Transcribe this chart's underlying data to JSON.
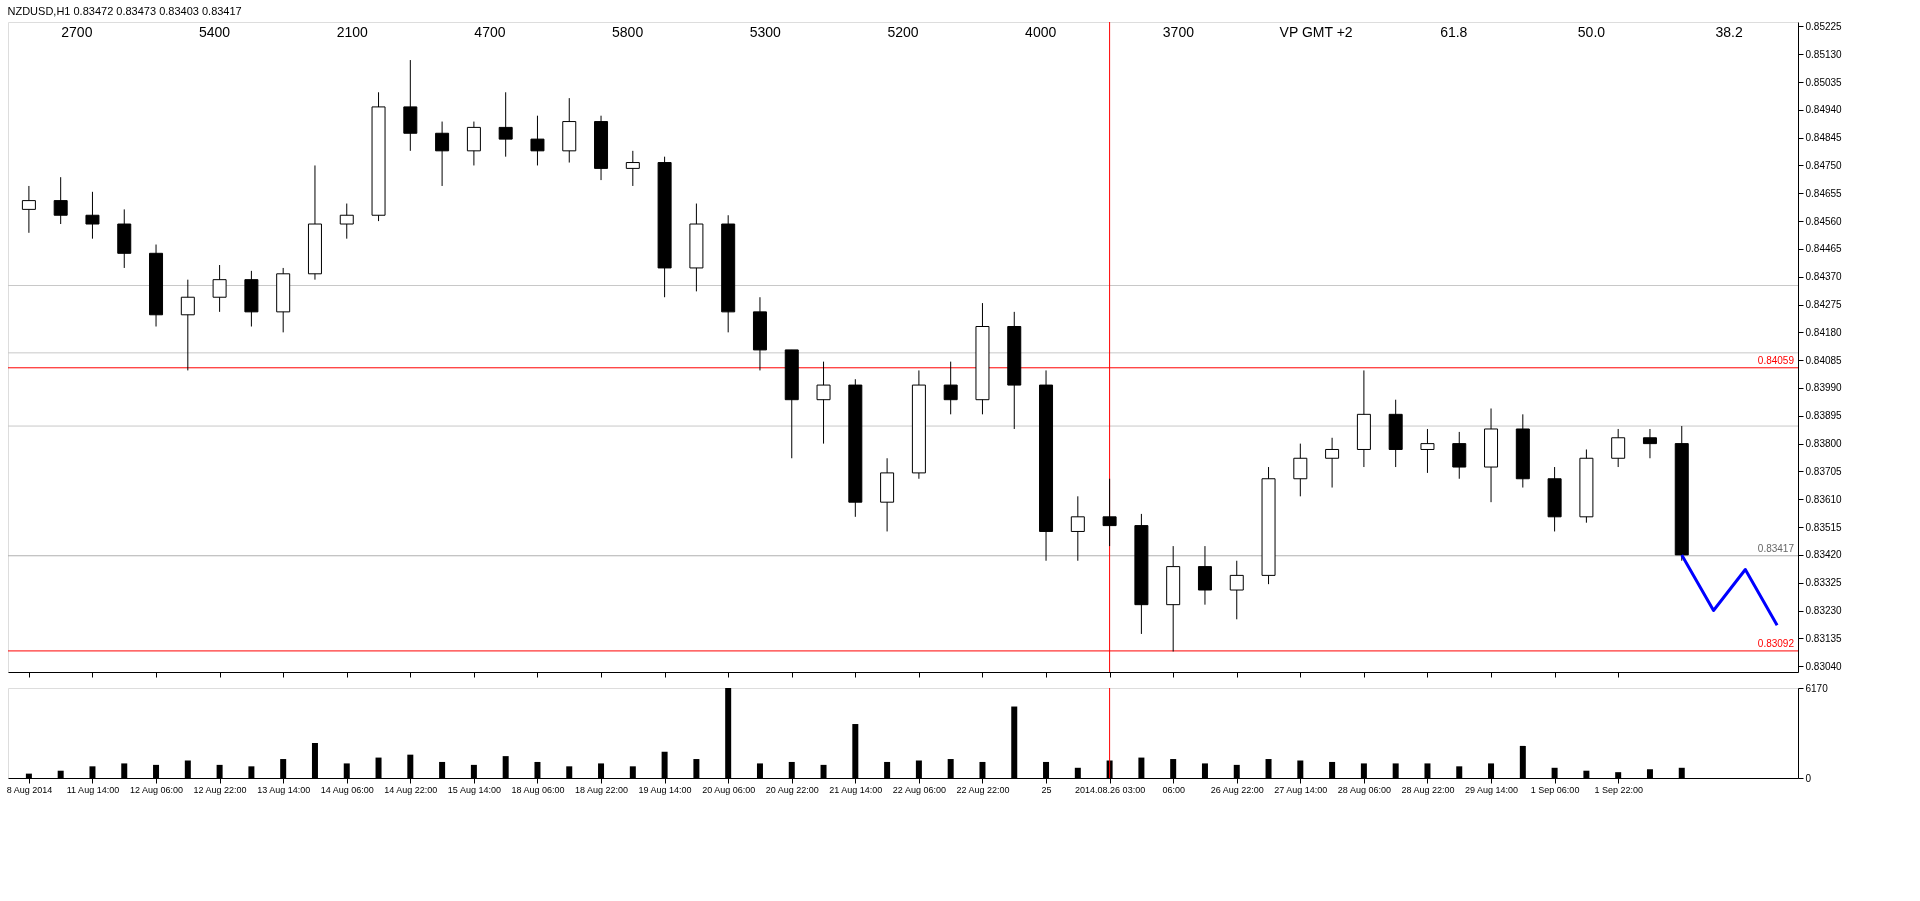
{
  "chart_data": [
    {
      "type": "candlestick",
      "title": "NZDUSD,H1 0.83472 0.83473 0.83403 0.83417",
      "categories": [
        "8 Aug 2014",
        null,
        "11 Aug 14:00",
        null,
        "12 Aug 06:00",
        null,
        "12 Aug 22:00",
        null,
        "13 Aug 14:00",
        null,
        "14 Aug 06:00",
        null,
        "14 Aug 22:00",
        null,
        "15 Aug 14:00",
        null,
        "18 Aug 06:00",
        null,
        "18 Aug 22:00",
        null,
        "19 Aug 14:00",
        null,
        "20 Aug 06:00",
        null,
        "20 Aug 22:00",
        null,
        "21 Aug 14:00",
        null,
        "22 Aug 06:00",
        null,
        "22 Aug 22:00",
        null,
        "25",
        null,
        "2014.08.26 03:00",
        null,
        "06:00",
        null,
        "26 Aug 22:00",
        null,
        "27 Aug 14:00",
        null,
        "28 Aug 06:00",
        null,
        "28 Aug 22:00",
        null,
        "29 Aug 14:00",
        null,
        "1 Sep 06:00",
        null,
        "1 Sep 22:00",
        null,
        null,
        null,
        null,
        null
      ],
      "ohlc": [
        [
          0.846,
          0.8468,
          0.8452,
          0.8463
        ],
        [
          0.8463,
          0.8471,
          0.8455,
          0.8458
        ],
        [
          0.8458,
          0.8466,
          0.845,
          0.8455
        ],
        [
          0.8455,
          0.846,
          0.844,
          0.8445
        ],
        [
          0.8445,
          0.8448,
          0.842,
          0.8424
        ],
        [
          0.8424,
          0.8436,
          0.8405,
          0.843
        ],
        [
          0.843,
          0.8441,
          0.8425,
          0.8436
        ],
        [
          0.8436,
          0.8439,
          0.842,
          0.8425
        ],
        [
          0.8425,
          0.844,
          0.8418,
          0.8438
        ],
        [
          0.8438,
          0.8475,
          0.8436,
          0.8455
        ],
        [
          0.8455,
          0.8462,
          0.845,
          0.8458
        ],
        [
          0.8458,
          0.85,
          0.8456,
          0.8495
        ],
        [
          0.8495,
          0.8511,
          0.848,
          0.8486
        ],
        [
          0.8486,
          0.849,
          0.8468,
          0.848
        ],
        [
          0.848,
          0.849,
          0.8475,
          0.8488
        ],
        [
          0.8488,
          0.85,
          0.8478,
          0.8484
        ],
        [
          0.8484,
          0.8492,
          0.8475,
          0.848
        ],
        [
          0.848,
          0.8498,
          0.8476,
          0.849
        ],
        [
          0.849,
          0.8492,
          0.847,
          0.8474
        ],
        [
          0.8474,
          0.848,
          0.8468,
          0.8476
        ],
        [
          0.8476,
          0.8478,
          0.843,
          0.844
        ],
        [
          0.844,
          0.8462,
          0.8432,
          0.8455
        ],
        [
          0.8455,
          0.8458,
          0.8418,
          0.8425
        ],
        [
          0.8425,
          0.843,
          0.8405,
          0.8412
        ],
        [
          0.8412,
          0.8412,
          0.8375,
          0.8395
        ],
        [
          0.8395,
          0.8408,
          0.838,
          0.84
        ],
        [
          0.84,
          0.8402,
          0.8355,
          0.836
        ],
        [
          0.836,
          0.8375,
          0.835,
          0.837
        ],
        [
          0.837,
          0.8405,
          0.8368,
          0.84
        ],
        [
          0.84,
          0.8408,
          0.839,
          0.8395
        ],
        [
          0.8395,
          0.8428,
          0.839,
          0.842
        ],
        [
          0.842,
          0.8425,
          0.8385,
          0.84
        ],
        [
          0.84,
          0.8405,
          0.834,
          0.835
        ],
        [
          0.835,
          0.8362,
          0.834,
          0.8355
        ],
        [
          0.8355,
          0.8368,
          0.8345,
          0.8352
        ],
        [
          0.8352,
          0.8356,
          0.8315,
          0.8325
        ],
        [
          0.8325,
          0.8345,
          0.8309,
          0.8338
        ],
        [
          0.8338,
          0.8345,
          0.8325,
          0.833
        ],
        [
          0.833,
          0.834,
          0.832,
          0.8335
        ],
        [
          0.8335,
          0.8372,
          0.8332,
          0.8368
        ],
        [
          0.8368,
          0.838,
          0.8362,
          0.8375
        ],
        [
          0.8375,
          0.8382,
          0.8365,
          0.8378
        ],
        [
          0.8378,
          0.8405,
          0.8372,
          0.839
        ],
        [
          0.839,
          0.8395,
          0.8372,
          0.8378
        ],
        [
          0.8378,
          0.8385,
          0.837,
          0.838
        ],
        [
          0.838,
          0.8384,
          0.8368,
          0.8372
        ],
        [
          0.8372,
          0.8392,
          0.836,
          0.8385
        ],
        [
          0.8385,
          0.839,
          0.8365,
          0.8368
        ],
        [
          0.8368,
          0.8372,
          0.835,
          0.8355
        ],
        [
          0.8355,
          0.8378,
          0.8353,
          0.8375
        ],
        [
          0.8375,
          0.8385,
          0.8372,
          0.8382
        ],
        [
          0.8382,
          0.8385,
          0.8375,
          0.838
        ],
        [
          0.838,
          0.8386,
          0.834,
          0.8342
        ],
        null,
        null,
        null
      ],
      "series": [
        {
          "type": "line",
          "values": [
            null,
            null,
            null,
            null,
            null,
            null,
            null,
            null,
            null,
            null,
            null,
            null,
            null,
            null,
            null,
            null,
            null,
            null,
            null,
            null,
            null,
            null,
            null,
            null,
            null,
            null,
            null,
            null,
            null,
            null,
            null,
            null,
            null,
            null,
            null,
            null,
            null,
            null,
            null,
            null,
            null,
            null,
            null,
            null,
            null,
            null,
            null,
            null,
            null,
            null,
            null,
            null,
            0.8342,
            0.8323,
            0.8337,
            0.8318
          ],
          "color": "#0000ff"
        }
      ],
      "ylim": [
        0.8302,
        0.8524
      ],
      "yticks": [
        0.85225,
        {
          "value": 0.8513,
          "label": "0.85130"
        },
        0.85035,
        {
          "value": 0.8494,
          "label": "0.84940"
        },
        0.84845,
        {
          "value": 0.8475,
          "label": "0.84750"
        },
        0.84655,
        {
          "value": 0.8456,
          "label": "0.84560"
        },
        0.84465,
        {
          "value": 0.8437,
          "label": "0.84370"
        },
        0.84275,
        {
          "value": 0.8418,
          "label": "0.84180"
        },
        0.84085,
        {
          "value": 0.8399,
          "label": "0.83990"
        },
        0.83895,
        {
          "value": 0.838,
          "label": "0.83800"
        },
        0.83705,
        {
          "value": 0.8361,
          "label": "0.83610"
        },
        0.83515,
        {
          "value": 0.8342,
          "label": "0.83420"
        },
        0.83325,
        {
          "value": 0.8323,
          "label": "0.83230"
        },
        0.83135,
        {
          "value": 0.8304,
          "label": "0.83040"
        }
      ],
      "tick_labels": "y",
      "ref_lines": [
        {
          "axis": "y",
          "value": 0.84059,
          "label": "0.84059",
          "color": "#ff0000"
        },
        {
          "axis": "y",
          "value": 0.83092,
          "label": "0.83092",
          "color": "#ff0000"
        },
        {
          "axis": "y",
          "value": 0.83417,
          "label": "0.83417",
          "color": "#b0b0b0"
        },
        {
          "axis": "y",
          "value": 0.8434,
          "color": "#c8c8c8"
        },
        {
          "axis": "y",
          "value": 0.8411,
          "color": "#c8c8c8"
        },
        {
          "axis": "y",
          "value": 0.8386,
          "color": "#c8c8c8"
        },
        {
          "axis": "x",
          "value": "2014.08.26 03:00",
          "color": "#ff0000"
        }
      ],
      "annotations": [
        "2700",
        "5400",
        "2100",
        "4700",
        "5800",
        "5300",
        "5200",
        "4000",
        "3700",
        "VP GMT +2",
        "61.8",
        "50.0",
        "38.2"
      ]
    },
    {
      "type": "bar",
      "categories": [
        "8 Aug 2014",
        null,
        "11 Aug 14:00",
        null,
        "12 Aug 06:00",
        null,
        "12 Aug 22:00",
        null,
        "13 Aug 14:00",
        null,
        "14 Aug 06:00",
        null,
        "14 Aug 22:00",
        null,
        "15 Aug 14:00",
        null,
        "18 Aug 06:00",
        null,
        "18 Aug 22:00",
        null,
        "19 Aug 14:00",
        null,
        "20 Aug 06:00",
        null,
        "20 Aug 22:00",
        null,
        "21 Aug 14:00",
        null,
        "22 Aug 06:00",
        null,
        "22 Aug 22:00",
        null,
        "25",
        null,
        "2014.08.26 03:00",
        null,
        "06:00",
        null,
        "26 Aug 22:00",
        null,
        "27 Aug 14:00",
        null,
        "28 Aug 06:00",
        null,
        "28 Aug 22:00",
        null,
        "29 Aug 14:00",
        null,
        "1 Sep 06:00",
        null,
        "1 Sep 22:00",
        null,
        null,
        null,
        null,
        null
      ],
      "series": [
        {
          "color": "#000000",
          "values": [
            300,
            500,
            800,
            1000,
            900,
            1200,
            900,
            800,
            1300,
            2400,
            1000,
            1400,
            1600,
            1100,
            900,
            1500,
            1100,
            800,
            1000,
            800,
            1800,
            1300,
            6170,
            1000,
            1100,
            900,
            3700,
            1100,
            1200,
            1300,
            1100,
            4900,
            1100,
            700,
            1200,
            1400,
            1300,
            1000,
            900,
            1300,
            1200,
            1100,
            1000,
            1000,
            1000,
            800,
            1000,
            2200,
            700,
            500,
            400,
            600,
            700,
            null,
            null,
            null
          ]
        }
      ],
      "ylim": [
        0,
        6170
      ],
      "yticks": [
        0,
        6170
      ],
      "ref_lines": [
        {
          "axis": "x",
          "value": "2014.08.26 03:00",
          "color": "#ff0000"
        }
      ]
    }
  ]
}
